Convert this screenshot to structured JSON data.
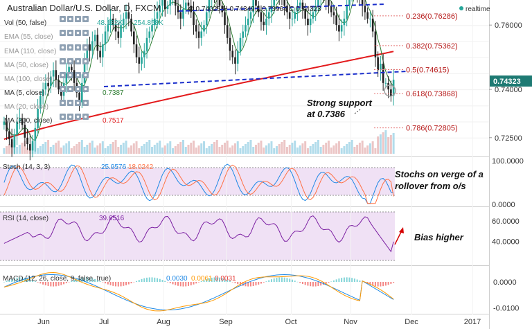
{
  "header": {
    "title": "Australian Dollar/U.S. Dollar, D, FXCM",
    "ohlc": "O 0.74025 H 0.74349 L 0.73964 C 0.74323",
    "realtime_label": "realtime"
  },
  "indicator_labels": {
    "vol": "Vol (50, false)",
    "vol_v1": "48.132K",
    "vol_v2": "254.858K",
    "ema55": "EMA (55, close)",
    "ema110": "EMA (110, close)",
    "ma50": "MA (50, close)",
    "ma100": "MA (100, close)",
    "ma5": "MA (5, close)",
    "ma5_value": "0.7387",
    "ma20": "MA (20, close)",
    "ma200": "MA (200, close)",
    "ma200_value": "0.7517",
    "stoch": "Stoch (14, 3, 3)",
    "stoch_k": "25.9576",
    "stoch_d": "18.0242",
    "rsi": "RSI (14, close)",
    "rsi_value": "39.6516",
    "macd": "MACD (12, 26, close, 9, false, true)",
    "macd_v1": "0.0030",
    "macd_v2": "0.0061",
    "macd_v3": "0.0031"
  },
  "fib_levels": [
    {
      "label": "0.236(0.76286)",
      "value": 0.76286
    },
    {
      "label": "0.382(0.75362)",
      "value": 0.75362
    },
    {
      "label": "0.5(0.74615)",
      "value": 0.74615
    },
    {
      "label": "0.618(0.73868)",
      "value": 0.73868
    },
    {
      "label": "0.786(0.72805)",
      "value": 0.72805
    }
  ],
  "annotations": {
    "support": "Strong support\nat 0.7386",
    "stochs": "Stochs on verge of a\nrollover from o/s",
    "bias": "Bias higher"
  },
  "price_badge": "0.74323",
  "colors": {
    "up": "#26a69a",
    "down": "#222222",
    "ma200": "#e31a1c",
    "ma5": "#2e7d32",
    "trend": "#1a2ecb",
    "fib": "#b71c1c",
    "stoch_k": "#1e88e5",
    "stoch_d": "#ff7043",
    "rsi": "#7b1fa2",
    "macd_line": "#1e88e5",
    "macd_signal": "#ff9800",
    "pane_fill": "#ecd9f3",
    "badge": "#1e7a73",
    "annot_arrow": "#d50000"
  },
  "chart_data": [
    {
      "type": "candlestick",
      "title": "Australian Dollar/U.S. Dollar, D, FXCM",
      "x_labels": [
        "Jun",
        "Jul",
        "Aug",
        "Sep",
        "Oct",
        "Nov",
        "Dec",
        "2017"
      ],
      "y_ticks": [
        0.725,
        0.73,
        0.735,
        0.74,
        0.745,
        0.75,
        0.755,
        0.76
      ],
      "y_tick_labels": [
        "0.72500",
        "0.74000",
        "0.76000"
      ],
      "ylim": [
        0.72,
        0.7665
      ],
      "close": [
        0.73,
        0.727,
        0.7245,
        0.722,
        0.726,
        0.73,
        0.731,
        0.729,
        0.725,
        0.723,
        0.721,
        0.724,
        0.728,
        0.734,
        0.738,
        0.74,
        0.742,
        0.741,
        0.744,
        0.746,
        0.743,
        0.74,
        0.738,
        0.742,
        0.745,
        0.747,
        0.746,
        0.742,
        0.739,
        0.736,
        0.742,
        0.748,
        0.754,
        0.752,
        0.755,
        0.757,
        0.752,
        0.75,
        0.754,
        0.758,
        0.76,
        0.762,
        0.76,
        0.758,
        0.756,
        0.76,
        0.762,
        0.764,
        0.762,
        0.758,
        0.754,
        0.75,
        0.748,
        0.75,
        0.752,
        0.756,
        0.758,
        0.76,
        0.762,
        0.764,
        0.766,
        0.768,
        0.765,
        0.766,
        0.768,
        0.769,
        0.766,
        0.764,
        0.762,
        0.765,
        0.767,
        0.766,
        0.764,
        0.76,
        0.758,
        0.756,
        0.758,
        0.76,
        0.764,
        0.768,
        0.77,
        0.769,
        0.768,
        0.766,
        0.764,
        0.76,
        0.756,
        0.752,
        0.75,
        0.748,
        0.752,
        0.756,
        0.758,
        0.76,
        0.762,
        0.764,
        0.768,
        0.766,
        0.764,
        0.761,
        0.76,
        0.762,
        0.764,
        0.766,
        0.769,
        0.771,
        0.769,
        0.768,
        0.766,
        0.764,
        0.762,
        0.762,
        0.764,
        0.766,
        0.767,
        0.765,
        0.762,
        0.76,
        0.762,
        0.764,
        0.766,
        0.768,
        0.77,
        0.769,
        0.768,
        0.766,
        0.764,
        0.763,
        0.76,
        0.758,
        0.76,
        0.762,
        0.766,
        0.77,
        0.773,
        0.772,
        0.77,
        0.768,
        0.766,
        0.764,
        0.762,
        0.762,
        0.758,
        0.75,
        0.746,
        0.748,
        0.742,
        0.742,
        0.74,
        0.738,
        0.743
      ]
    },
    {
      "type": "line",
      "name": "MA (200, close)",
      "y_from_to": [
        0.7245,
        0.7518
      ]
    },
    {
      "type": "line",
      "title": "Stoch (14, 3, 3)",
      "y_ticks": [
        0,
        100
      ],
      "y_tick_labels": [
        "0.0000",
        "100.0000"
      ],
      "ylim": [
        0,
        100
      ],
      "band": [
        20,
        80
      ],
      "k_value": 25.9576,
      "d_value": 18.0242
    },
    {
      "type": "line",
      "title": "RSI (14, close)",
      "y_ticks": [
        40,
        60
      ],
      "y_tick_labels": [
        "40.0000",
        "60.0000"
      ],
      "ylim": [
        20,
        70
      ],
      "band": [
        30,
        70
      ],
      "value": 39.6516
    },
    {
      "type": "bar",
      "title": "MACD (12, 26, close, 9, false, true)",
      "y_ticks": [
        -0.01,
        0
      ],
      "y_tick_labels": [
        "-0.0100",
        "0.0000"
      ],
      "ylim": [
        -0.012,
        0.004
      ]
    }
  ]
}
